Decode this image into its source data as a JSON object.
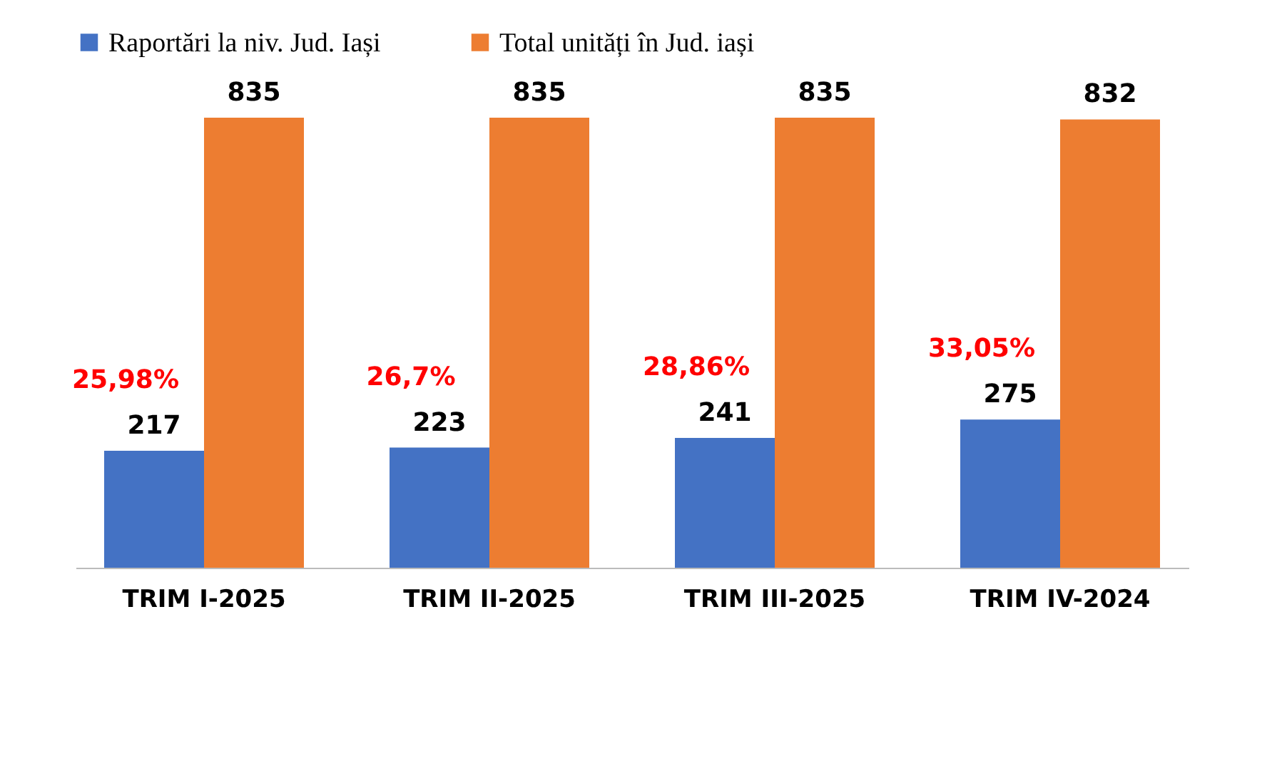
{
  "chart_data": {
    "type": "bar",
    "categories": [
      "TRIM I-2025",
      "TRIM II-2025",
      "TRIM III-2025",
      "TRIM IV-2024"
    ],
    "series": [
      {
        "name": "Raportări la niv. Jud. Iași",
        "color": "#4472c4",
        "values": [
          217,
          223,
          241,
          275
        ]
      },
      {
        "name": "Total unități în Jud. iași",
        "color": "#ed7d31",
        "values": [
          835,
          835,
          835,
          832
        ]
      }
    ],
    "data_labels": true,
    "legend": "top",
    "grid": false,
    "annotations": [
      {
        "text": "25,98%",
        "x": "TRIM I-2025",
        "y": 217
      },
      {
        "text": "26,7%",
        "x": "TRIM II-2025",
        "y": 223
      },
      {
        "text": "28,86%",
        "x": "TRIM III-2025",
        "y": 241
      },
      {
        "text": "33,05%",
        "x": "TRIM IV-2024",
        "y": 275
      }
    ]
  }
}
